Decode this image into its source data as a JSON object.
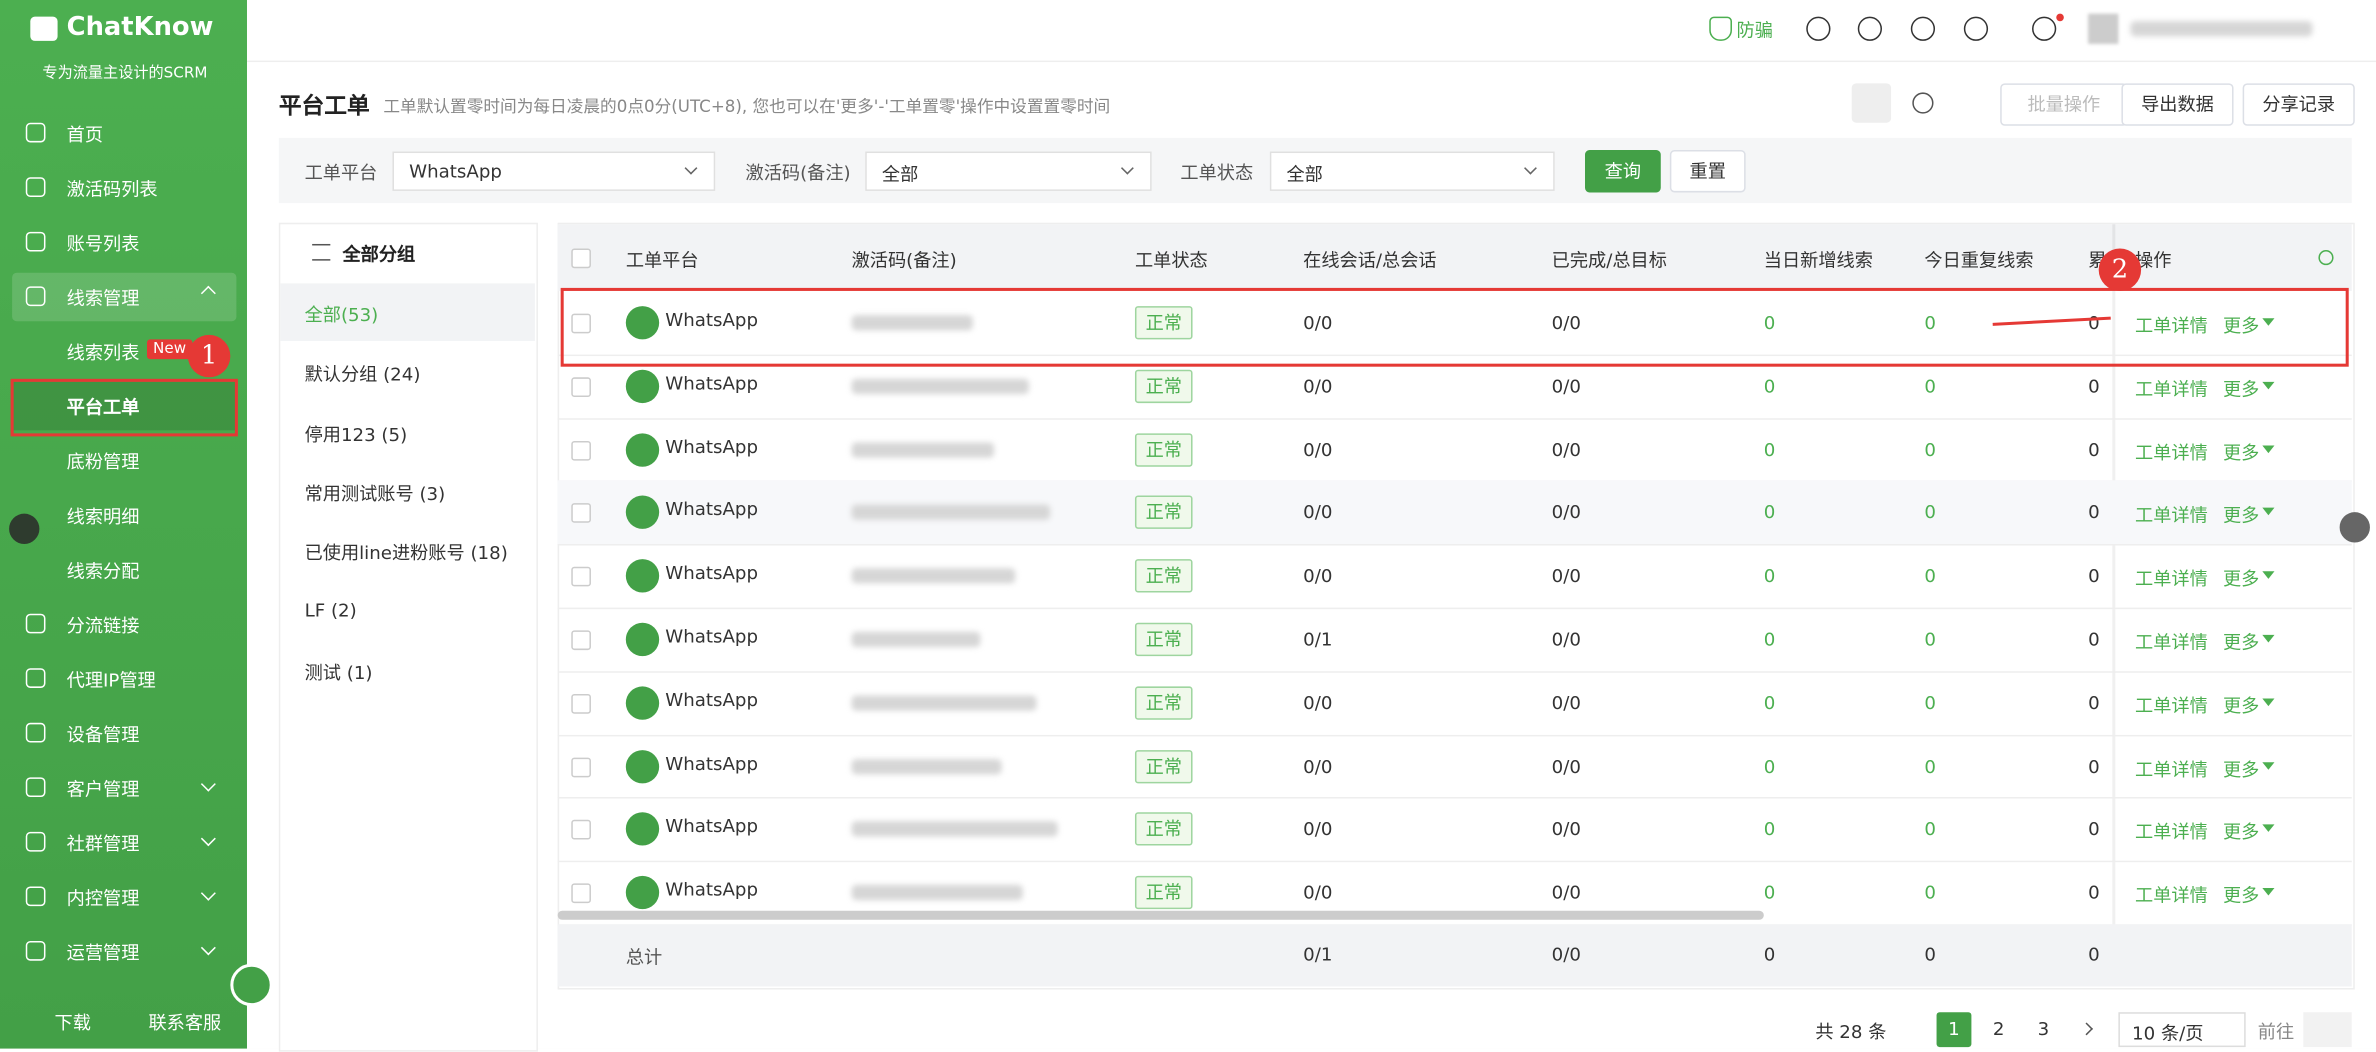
{
  "sidebar": {
    "brand": "ChatKnow",
    "tagline": "专为流量主设计的SCRM",
    "menu": [
      "首页",
      "激活码列表",
      "账号列表",
      "线索管理",
      "分流链接",
      "代理IP管理",
      "设备管理",
      "客户管理",
      "社群管理",
      "内控管理",
      "运营管理"
    ],
    "submenu": [
      "线索列表",
      "平台工单",
      "底粉管理",
      "线索明细",
      "线索分配"
    ],
    "badge": "New",
    "footer": [
      "下载",
      "联系客服"
    ]
  },
  "topbar": {
    "anti_fraud": "防骗"
  },
  "page": {
    "title": "平台工单",
    "subtitle": "工单默认置零时间为每日凌晨的0点0分(UTC+8), 您也可以在'更多'-'工单置零'操作中设置置零时间",
    "buttons": [
      "批量操作",
      "导出数据",
      "分享记录"
    ]
  },
  "filters": [
    {
      "label": "工单平台",
      "value": "WhatsApp"
    },
    {
      "label": "激活码(备注)",
      "value": "全部"
    },
    {
      "label": "工单状态",
      "value": "全部"
    }
  ],
  "filter_buttons": [
    "查询",
    "重置"
  ],
  "groups": {
    "title": "全部分组",
    "items": [
      "全部(53)",
      "默认分组 (24)",
      "停用123 (5)",
      "常用测试账号 (3)",
      "已使用line进粉账号 (18)",
      "LF (2)",
      "测试 (1)"
    ]
  },
  "table": {
    "columns": [
      "工单平台",
      "激活码(备注)",
      "工单状态",
      "在线会话/总会话",
      "已完成/总目标",
      "当日新增线索",
      "今日重复线索",
      "累",
      "操作"
    ],
    "rows": [
      [
        "WhatsApp",
        "正常",
        "0/0",
        "0/0",
        "0",
        "0",
        "0"
      ],
      [
        "WhatsApp",
        "正常",
        "0/0",
        "0/0",
        "0",
        "0",
        "0"
      ],
      [
        "WhatsApp",
        "正常",
        "0/0",
        "0/0",
        "0",
        "0",
        "0"
      ],
      [
        "WhatsApp",
        "正常",
        "0/0",
        "0/0",
        "0",
        "0",
        "0"
      ],
      [
        "WhatsApp",
        "正常",
        "0/0",
        "0/0",
        "0",
        "0",
        "0"
      ],
      [
        "WhatsApp",
        "正常",
        "0/1",
        "0/0",
        "0",
        "0",
        "0"
      ],
      [
        "WhatsApp",
        "正常",
        "0/0",
        "0/0",
        "0",
        "0",
        "0"
      ],
      [
        "WhatsApp",
        "正常",
        "0/0",
        "0/0",
        "0",
        "0",
        "0"
      ],
      [
        "WhatsApp",
        "正常",
        "0/0",
        "0/0",
        "0",
        "0",
        "0"
      ],
      [
        "WhatsApp",
        "正常",
        "0/0",
        "0/0",
        "0",
        "0",
        "0"
      ]
    ],
    "actions": [
      "工单详情",
      "更多"
    ],
    "total_label": "总计",
    "totals": [
      "0/1",
      "0/0",
      "0",
      "0",
      "0"
    ]
  },
  "annotations": [
    "1",
    "2"
  ],
  "pagination": {
    "total": "共 28 条",
    "pages": [
      "1",
      "2",
      "3"
    ],
    "page_size": "10 条/页",
    "goto": "前往"
  }
}
